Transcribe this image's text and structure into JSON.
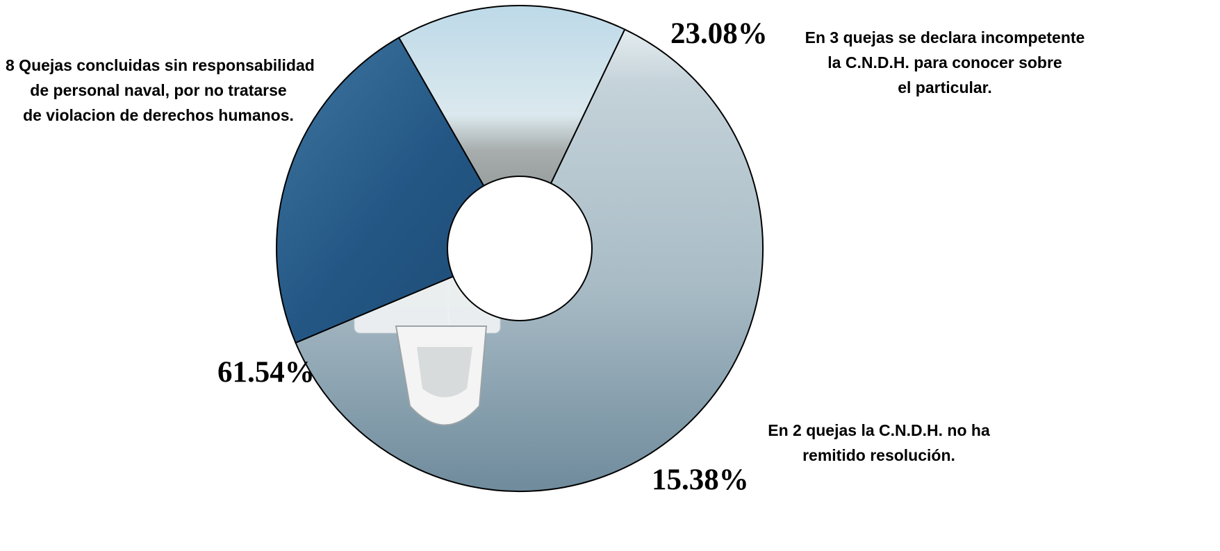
{
  "chart_data": {
    "type": "pie",
    "donut": true,
    "slices": [
      {
        "value": 61.54,
        "label": "61.54%",
        "annotation": [
          "8 Quejas concluidas sin responsabilidad",
          "de personal naval, por no tratarse",
          "de violacion de derechos humanos."
        ],
        "fill": "photo-tall-ship"
      },
      {
        "value": 23.08,
        "label": "23.08%",
        "annotation": [
          "En 3 quejas se declara incompetente",
          "la C.N.D.H. para conocer sobre",
          "el particular."
        ],
        "fill": "photo-amphibious-vehicle"
      },
      {
        "value": 15.38,
        "label": "15.38%",
        "annotation": [
          "En 2 quejas la C.N.D.H. no ha",
          "remitido resolución."
        ],
        "fill": "photo-helicopter-deck"
      }
    ],
    "legend": "none"
  },
  "colors": {
    "sea_light": "#b9cdd8",
    "sea_dark": "#2a5d84",
    "sky": "#cfe3ee",
    "deck": "#8c9294",
    "outline": "#000000"
  }
}
